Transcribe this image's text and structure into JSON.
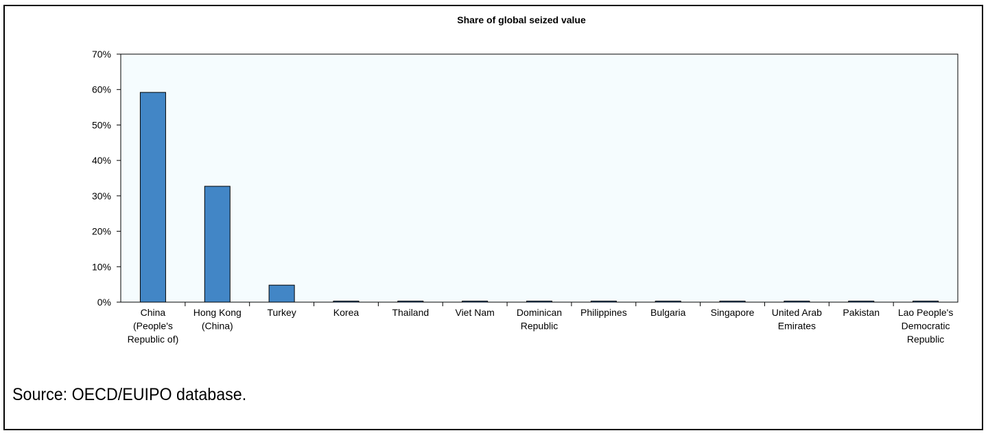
{
  "chart_data": {
    "type": "bar",
    "title": "Share of global seized value",
    "xlabel": "",
    "ylabel": "",
    "ylim": [
      0,
      0.7
    ],
    "yticks": [
      "0%",
      "10%",
      "20%",
      "30%",
      "40%",
      "50%",
      "60%",
      "70%"
    ],
    "categories": [
      "China (People's Republic of)",
      "Hong Kong (China)",
      "Turkey",
      "Korea",
      "Thailand",
      "Viet Nam",
      "Dominican Republic",
      "Philippines",
      "Bulgaria",
      "Singapore",
      "United Arab Emirates",
      "Pakistan",
      "Lao People's Democratic Republic"
    ],
    "category_lines": [
      [
        "China",
        "(People's",
        "Republic of)"
      ],
      [
        "Hong Kong",
        "(China)"
      ],
      [
        "Turkey"
      ],
      [
        "Korea"
      ],
      [
        "Thailand"
      ],
      [
        "Viet Nam"
      ],
      [
        "Dominican",
        "Republic"
      ],
      [
        "Philippines"
      ],
      [
        "Bulgaria"
      ],
      [
        "Singapore"
      ],
      [
        "United Arab",
        "Emirates"
      ],
      [
        "Pakistan"
      ],
      [
        "Lao People's",
        "Democratic",
        "Republic"
      ]
    ],
    "values": [
      0.592,
      0.327,
      0.048,
      0.003,
      0.003,
      0.003,
      0.003,
      0.003,
      0.003,
      0.003,
      0.003,
      0.003,
      0.003
    ],
    "bar_color": "#4286C6",
    "plot_background": "#F5FCFE",
    "grid": false,
    "legend": "none"
  },
  "source_note": "Source: OECD/EUIPO database."
}
